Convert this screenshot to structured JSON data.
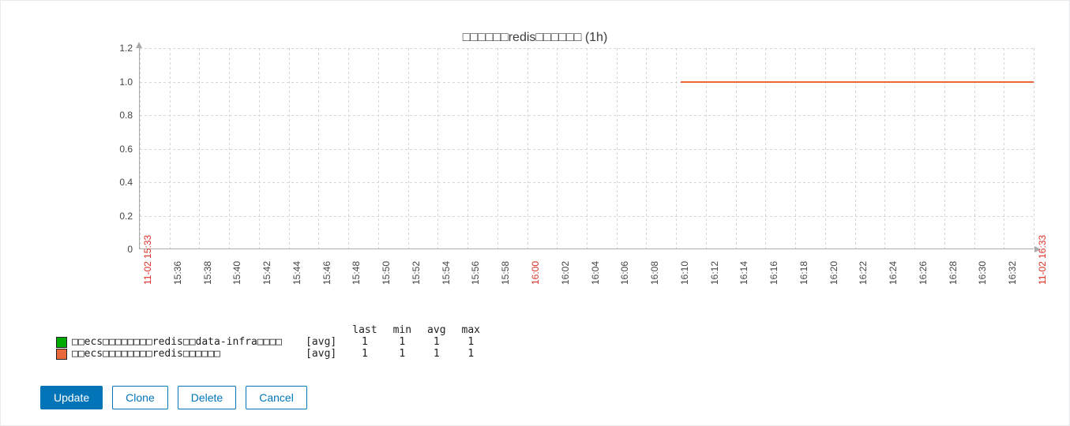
{
  "chart": {
    "type": "line",
    "title": "□□□□□□redis□□□□□□ (1h)",
    "title_fontsize": 16,
    "background_color": "#ffffff",
    "grid_color": "#d6d6d6",
    "grid_dash": "3,3",
    "axis_color": "#aaaaaa",
    "y": {
      "min": 0,
      "max": 1.2,
      "ticks": [
        0,
        0.2,
        0.4,
        0.6,
        0.8,
        1.0,
        1.2
      ],
      "tick_labels": [
        "0",
        "0.2",
        "0.4",
        "0.6",
        "0.8",
        "1.0",
        "1.2"
      ],
      "label_color": "#444444",
      "label_fontsize": 12
    },
    "x": {
      "start_label": "11-02 15:33",
      "end_label": "11-02 16:33",
      "ticks": [
        "15:36",
        "15:38",
        "15:40",
        "15:42",
        "15:44",
        "15:46",
        "15:48",
        "15:50",
        "15:52",
        "15:54",
        "15:56",
        "15:58",
        "16:00",
        "16:02",
        "16:04",
        "16:06",
        "16:08",
        "16:10",
        "16:12",
        "16:14",
        "16:16",
        "16:18",
        "16:20",
        "16:22",
        "16:24",
        "16:26",
        "16:28",
        "16:30",
        "16:32"
      ],
      "hour_tick": "16:00",
      "endpoint_color": "#d93025",
      "hour_color": "#d93025",
      "label_color": "#444444",
      "label_fontsize": 12
    },
    "series": [
      {
        "name": "□□ecs□□□□□□□□redis□□data-infra□□□□",
        "color": "#00aa00",
        "swatch_color": "#00aa00",
        "agg": "[avg]",
        "last": "1",
        "min": "1",
        "avg": "1",
        "max": "1",
        "segment": null
      },
      {
        "name": "□□ecs□□□□□□□□redis□□□□□□",
        "color": "#e8683c",
        "swatch_color": "#e8683c",
        "agg": "[avg]",
        "last": "1",
        "min": "1",
        "avg": "1",
        "max": "1",
        "segment": {
          "x_start_frac": 0.605,
          "x_end_frac": 1.0,
          "y_value": 1.0
        }
      }
    ],
    "line_width": 2
  },
  "legend_headers": {
    "last": "last",
    "min": "min",
    "avg": "avg",
    "max": "max"
  },
  "buttons": {
    "update": "Update",
    "clone": "Clone",
    "delete": "Delete",
    "cancel": "Cancel"
  },
  "colors": {
    "button_primary_bg": "#0275b8",
    "button_primary_fg": "#ffffff",
    "button_border": "#0275b8",
    "button_fg": "#0275b8"
  }
}
